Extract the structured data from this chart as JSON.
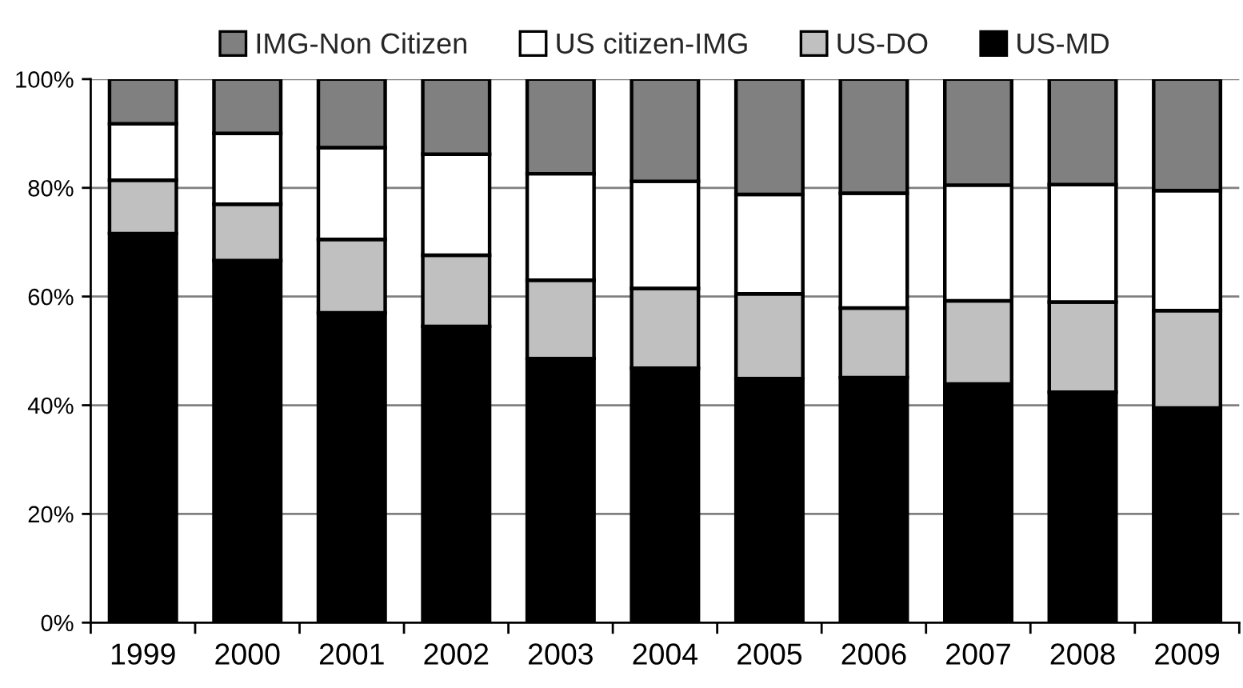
{
  "chart_data": {
    "type": "bar",
    "stacked": true,
    "categories": [
      "1999",
      "2000",
      "2001",
      "2002",
      "2003",
      "2004",
      "2005",
      "2006",
      "2007",
      "2008",
      "2009"
    ],
    "series": [
      {
        "name": "US-MD",
        "color": "#000000",
        "values": [
          71.6,
          66.6,
          57.0,
          54.5,
          48.6,
          46.8,
          44.9,
          45.1,
          43.9,
          42.4,
          39.5
        ]
      },
      {
        "name": "US-DO",
        "color": "#c0c0c0",
        "values": [
          9.8,
          10.4,
          13.5,
          13.1,
          14.4,
          14.7,
          15.6,
          12.8,
          15.3,
          16.6,
          17.9
        ]
      },
      {
        "name": "US citizen-IMG",
        "color": "#ffffff",
        "values": [
          10.4,
          13.0,
          16.9,
          18.6,
          19.6,
          19.7,
          18.3,
          21.1,
          21.3,
          21.6,
          22.1
        ]
      },
      {
        "name": "IMG-Non Citizen",
        "color": "#808080",
        "values": [
          8.2,
          10.0,
          12.6,
          13.8,
          17.4,
          18.8,
          21.2,
          21.0,
          19.5,
          19.4,
          20.5
        ]
      }
    ],
    "ylim": [
      0,
      100
    ],
    "yticks": [
      {
        "value": 0,
        "label": "0%"
      },
      {
        "value": 20,
        "label": "20%"
      },
      {
        "value": 40,
        "label": "40%"
      },
      {
        "value": 60,
        "label": "60%"
      },
      {
        "value": 80,
        "label": "80%"
      },
      {
        "value": 100,
        "label": "100%"
      }
    ],
    "grid": "y",
    "legend": "top"
  }
}
